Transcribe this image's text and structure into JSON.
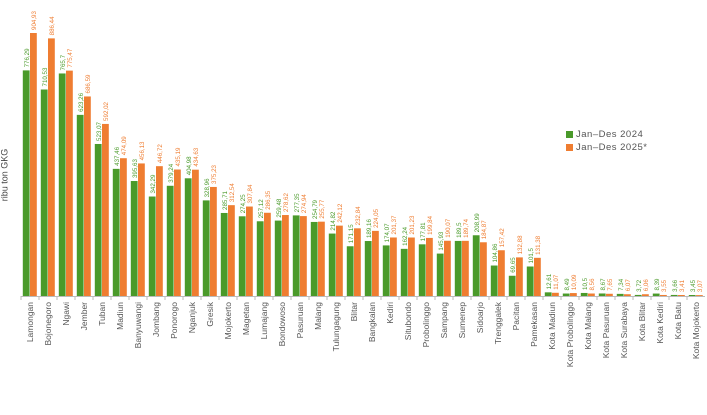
{
  "chart_data": {
    "type": "bar",
    "title": "",
    "xlabel": "",
    "ylabel": "ribu ton GKG",
    "ylim": [
      0,
      920
    ],
    "grid": false,
    "legend_position": "right",
    "categories": [
      "Lamongan",
      "Bojonegoro",
      "Ngawi",
      "Jember",
      "Tuban",
      "Madiun",
      "Banyuwangi",
      "Jombang",
      "Ponorogo",
      "Nganjuk",
      "Gresik",
      "Mojokerto",
      "Magetan",
      "Lumajang",
      "Bondowoso",
      "Pasuruan",
      "Malang",
      "Tulungagung",
      "Blitar",
      "Bangkalan",
      "Kediri",
      "Situbondo",
      "Probolinggo",
      "Sampang",
      "Sumenep",
      "Sidoarjo",
      "Trenggalek",
      "Pacitan",
      "Pamekasan",
      "Kota Madiun",
      "Kota Probolinggo",
      "Kota Malang",
      "Kota Pasuruan",
      "Kota Surabaya",
      "Kota Blitar",
      "Kota Kediri",
      "Kota Batu",
      "Kota Mojokerto"
    ],
    "series": [
      {
        "name": "Jan–Des 2024",
        "color": "#4a9a2a",
        "values": [
          776.29,
          710.53,
          765.7,
          623.26,
          523.07,
          437.46,
          395.63,
          342.29,
          379.24,
          404.98,
          328.96,
          285.71,
          274.25,
          257.12,
          259.48,
          277.35,
          254.79,
          214.82,
          171.15,
          189.16,
          174.07,
          162.24,
          177.81,
          145.93,
          189.5,
          208.99,
          104.86,
          69.65,
          101.5,
          12.61,
          8.49,
          10.5,
          8.67,
          7.34,
          3.72,
          8.39,
          3.66,
          3.45
        ],
        "labels": [
          "776,29",
          "710,53",
          "765,7",
          "623,26",
          "523,07",
          "437,46",
          "395,63",
          "342,29",
          "379,24",
          "404,98",
          "328,96",
          "285,71",
          "274,25",
          "257,12",
          "259,48",
          "277,35",
          "254,79",
          "214,82",
          "171,15",
          "189,16",
          "174,07",
          "162,24",
          "177,81",
          "145,93",
          "189,5",
          "208,99",
          "104,86",
          "69,65",
          "101,5",
          "12,61",
          "8,49",
          "10,5",
          "8,67",
          "7,34",
          "3,72",
          "8,39",
          "3,66",
          "3,45"
        ]
      },
      {
        "name": "Jan–Des 2025*",
        "color": "#ef7d31",
        "values": [
          904.93,
          886.44,
          775.47,
          686.59,
          592.02,
          474.09,
          456.13,
          446.72,
          435.19,
          434.63,
          375.23,
          312.54,
          307.84,
          286.35,
          278.62,
          274.94,
          255.77,
          242.12,
          232.84,
          224.05,
          201.37,
          201.23,
          199.84,
          190.07,
          189.74,
          184.87,
          157.42,
          132.88,
          131.38,
          11.07,
          10.09,
          8.56,
          7.65,
          6.07,
          6.06,
          3.55,
          3.41,
          3.07
        ],
        "labels": [
          "904,93",
          "886,44",
          "775,47",
          "686,59",
          "592,02",
          "474,09",
          "456,13",
          "446,72",
          "435,19",
          "434,63",
          "375,23",
          "312,54",
          "307,84",
          "286,35",
          "278,62",
          "274,94",
          "255,77",
          "242,12",
          "232,84",
          "224,05",
          "201,37",
          "201,23",
          "199,84",
          "190,07",
          "189,74",
          "184,87",
          "157,42",
          "132,88",
          "131,38",
          "11,07",
          "10,09",
          "8,56",
          "7,65",
          "6,07",
          "6,06",
          "3,55",
          "3,41",
          "3,07"
        ]
      }
    ]
  }
}
